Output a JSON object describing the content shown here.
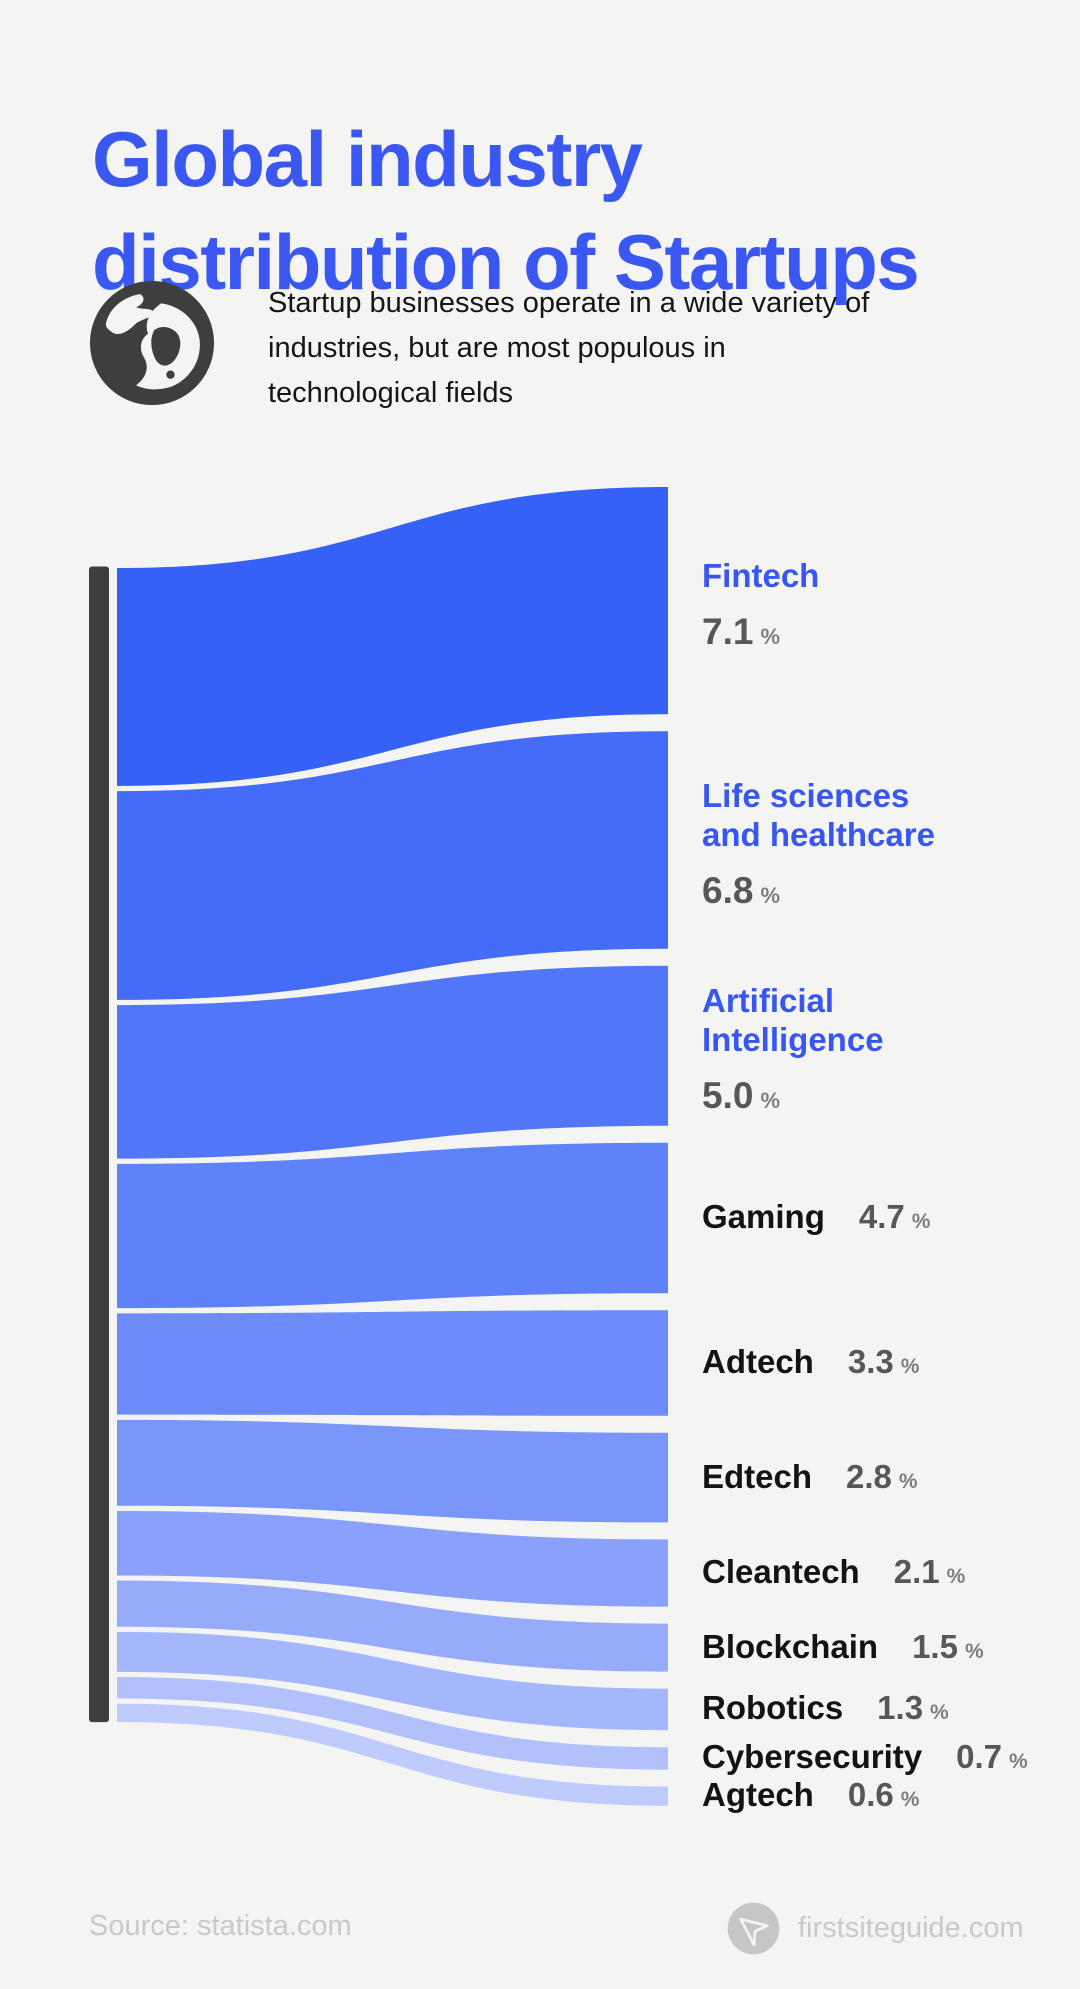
{
  "title": {
    "line1": "Global industry",
    "line2": "distribution of Startups"
  },
  "subtitle": {
    "lines": [
      "Startup businesses operate in a wide variety of",
      "industries, but are most populous in",
      "technological fields"
    ]
  },
  "chart_data": {
    "type": "sankey",
    "title": "Global industry distribution of Startups",
    "unit": "%",
    "orientation": "single source bar on left flowing to ranked bands on right",
    "categories": [
      "Fintech",
      "Life sciences and healthcare",
      "Artificial Intelligence",
      "Gaming",
      "Adtech",
      "Edtech",
      "Cleantech",
      "Blockchain",
      "Robotics",
      "Cybersecurity",
      "Agtech"
    ],
    "values": [
      7.1,
      6.8,
      5.0,
      4.7,
      3.3,
      2.8,
      2.1,
      1.5,
      1.3,
      0.7,
      0.6
    ],
    "items": [
      {
        "name": "Fintech",
        "name_lines": [
          "Fintech"
        ],
        "value": 7.1,
        "display": "7.1",
        "label_style": "stacked-blue"
      },
      {
        "name": "Life sciences and healthcare",
        "name_lines": [
          "Life sciences",
          "and healthcare"
        ],
        "value": 6.8,
        "display": "6.8",
        "label_style": "stacked-blue"
      },
      {
        "name": "Artificial Intelligence",
        "name_lines": [
          "Artificial",
          "Intelligence"
        ],
        "value": 5.0,
        "display": "5.0",
        "label_style": "stacked-blue"
      },
      {
        "name": "Gaming",
        "name_lines": [
          "Gaming"
        ],
        "value": 4.7,
        "display": "4.7",
        "label_style": "inline-dark"
      },
      {
        "name": "Adtech",
        "name_lines": [
          "Adtech"
        ],
        "value": 3.3,
        "display": "3.3",
        "label_style": "inline-dark"
      },
      {
        "name": "Edtech",
        "name_lines": [
          "Edtech"
        ],
        "value": 2.8,
        "display": "2.8",
        "label_style": "inline-dark"
      },
      {
        "name": "Cleantech",
        "name_lines": [
          "Cleantech"
        ],
        "value": 2.1,
        "display": "2.1",
        "label_style": "inline-dark"
      },
      {
        "name": "Blockchain",
        "name_lines": [
          "Blockchain"
        ],
        "value": 1.5,
        "display": "1.5",
        "label_style": "inline-dark"
      },
      {
        "name": "Robotics",
        "name_lines": [
          "Robotics"
        ],
        "value": 1.3,
        "display": "1.3",
        "label_style": "inline-dark"
      },
      {
        "name": "Cybersecurity",
        "name_lines": [
          "Cybersecurity"
        ],
        "value": 0.7,
        "display": "0.7",
        "label_style": "inline-dark"
      },
      {
        "name": "Agtech",
        "name_lines": [
          "Agtech"
        ],
        "value": 0.6,
        "display": "0.6",
        "label_style": "inline-dark"
      }
    ],
    "colors": {
      "band_start": "#3661F7",
      "band_end": "#C0CBFD",
      "source_bar": "#3E3E3E",
      "title_blue": "#3B57F2",
      "label_blue": "#3856F0",
      "label_dark": "#131313",
      "value_gray": "#575757",
      "percent_gray": "#7E7E7E",
      "background": "#F4F4F3"
    }
  },
  "icons": {
    "globe": "globe-icon",
    "brand": "paper-plane-icon"
  },
  "footer": {
    "source": "Source: statista.com",
    "brand": "firstsiteguide.com"
  }
}
